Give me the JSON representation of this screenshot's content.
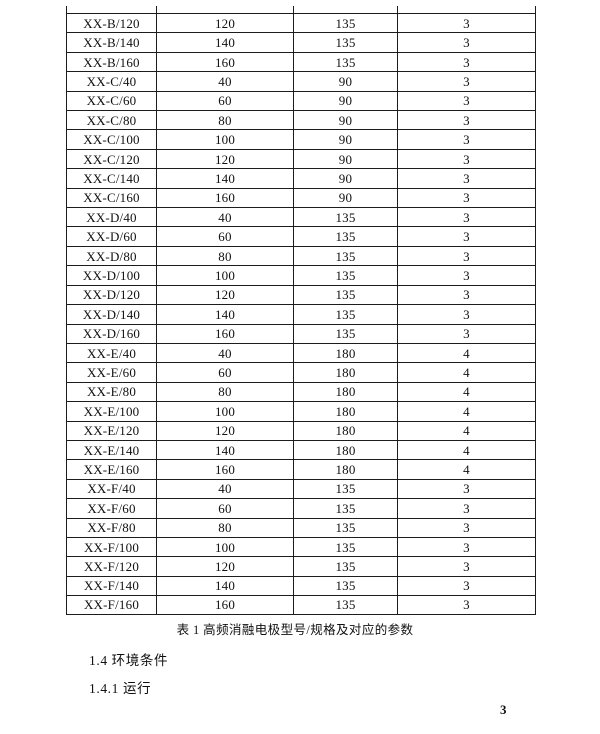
{
  "table": {
    "caption": "表 1 高频消融电极型号/规格及对应的参数",
    "rows": [
      [
        "XX-B/120",
        "120",
        "135",
        "3"
      ],
      [
        "XX-B/140",
        "140",
        "135",
        "3"
      ],
      [
        "XX-B/160",
        "160",
        "135",
        "3"
      ],
      [
        "XX-C/40",
        "40",
        "90",
        "3"
      ],
      [
        "XX-C/60",
        "60",
        "90",
        "3"
      ],
      [
        "XX-C/80",
        "80",
        "90",
        "3"
      ],
      [
        "XX-C/100",
        "100",
        "90",
        "3"
      ],
      [
        "XX-C/120",
        "120",
        "90",
        "3"
      ],
      [
        "XX-C/140",
        "140",
        "90",
        "3"
      ],
      [
        "XX-C/160",
        "160",
        "90",
        "3"
      ],
      [
        "XX-D/40",
        "40",
        "135",
        "3"
      ],
      [
        "XX-D/60",
        "60",
        "135",
        "3"
      ],
      [
        "XX-D/80",
        "80",
        "135",
        "3"
      ],
      [
        "XX-D/100",
        "100",
        "135",
        "3"
      ],
      [
        "XX-D/120",
        "120",
        "135",
        "3"
      ],
      [
        "XX-D/140",
        "140",
        "135",
        "3"
      ],
      [
        "XX-D/160",
        "160",
        "135",
        "3"
      ],
      [
        "XX-E/40",
        "40",
        "180",
        "4"
      ],
      [
        "XX-E/60",
        "60",
        "180",
        "4"
      ],
      [
        "XX-E/80",
        "80",
        "180",
        "4"
      ],
      [
        "XX-E/100",
        "100",
        "180",
        "4"
      ],
      [
        "XX-E/120",
        "120",
        "180",
        "4"
      ],
      [
        "XX-E/140",
        "140",
        "180",
        "4"
      ],
      [
        "XX-E/160",
        "160",
        "180",
        "4"
      ],
      [
        "XX-F/40",
        "40",
        "135",
        "3"
      ],
      [
        "XX-F/60",
        "60",
        "135",
        "3"
      ],
      [
        "XX-F/80",
        "80",
        "135",
        "3"
      ],
      [
        "XX-F/100",
        "100",
        "135",
        "3"
      ],
      [
        "XX-F/120",
        "120",
        "135",
        "3"
      ],
      [
        "XX-F/140",
        "140",
        "135",
        "3"
      ],
      [
        "XX-F/160",
        "160",
        "135",
        "3"
      ]
    ]
  },
  "sections": {
    "environment": "1.4 环境条件",
    "operation": "1.4.1 运行"
  },
  "page": {
    "number": "3"
  }
}
